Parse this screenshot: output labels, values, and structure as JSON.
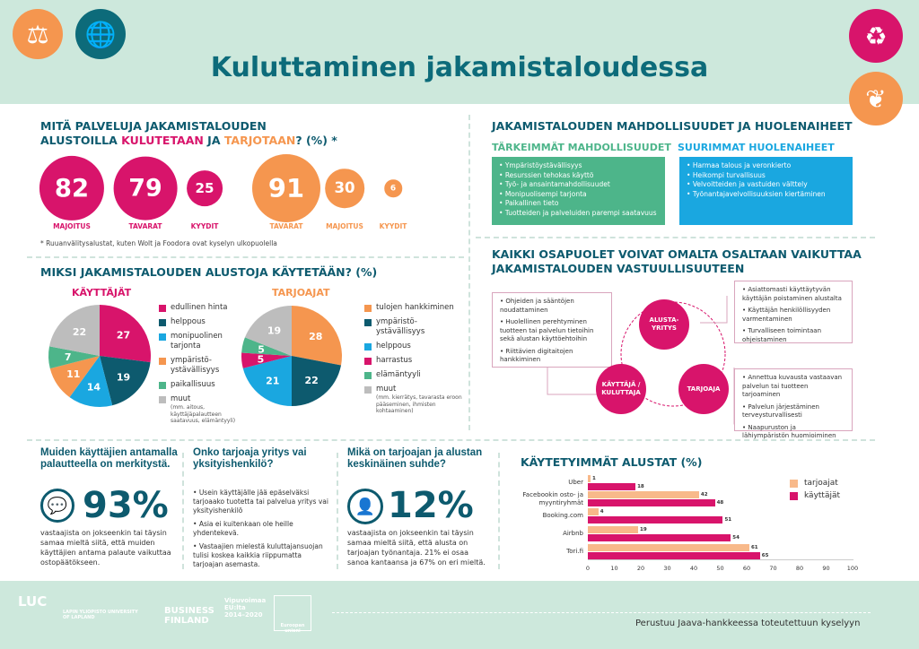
{
  "title": "Kuluttaminen jakamistaloudessa",
  "colors": {
    "magenta": "#d8146b",
    "orange": "#f5964f",
    "darkteal": "#0d5a6e",
    "cyan": "#1aa7e0",
    "green": "#4db58a",
    "gray": "#bdbdbd",
    "mint": "#cde8dc"
  },
  "icons": [
    "scales-icon",
    "globe-hand-icon",
    "recycle-icon",
    "leaves-icon"
  ],
  "services": {
    "title_part1": "MITÄ PALVELUJA JAKAMISTALOUDEN",
    "title_part2": "ALUSTOILLA ",
    "title_kul": "KULUTETAAN",
    "title_ja": " JA ",
    "title_tar": "TARJOTAAN",
    "title_end": "? (%) *",
    "footnote": "* Ruuanvälitysalustat, kuten Wolt ja Foodora ovat kyselyn ulkopuolella"
  },
  "opportunities": {
    "title": "JAKAMISTALOUDEN MAHDOLLISUUDET JA HUOLENAIHEET",
    "left_title": "TÄRKEIMMÄT MAHDOLLISUUDET",
    "right_title": "SUURIMMAT HUOLENAIHEET",
    "left": [
      "Ympäristöystävällisyys",
      "Resurssien tehokas käyttö",
      "Työ- ja ansaintamahdollisuudet",
      "Monipuolisempi tarjonta",
      "Paikallinen tieto",
      "Tuotteiden ja palveluiden parempi saatavuus"
    ],
    "right": [
      "Harmaa talous ja veronkierto",
      "Heikompi turvallisuus",
      "Velvoitteiden ja vastuiden välttely",
      "Työnantajavelvollisuuksien kiertäminen"
    ]
  },
  "why": {
    "title": "MIKSI JAKAMISTALOUDEN ALUSTOJA KÄYTETÄÄN? (%)"
  },
  "responsibility": {
    "title1": "KAIKKI OSAPUOLET VOIVAT OMALTA OSALTAAN VAIKUTTAA",
    "title2": "JAKAMISTALOUDEN VASTUULLISUUTEEN",
    "platform": "ALUSTA-\nYRITYS",
    "user": "KÄYTTÄJÄ /\nKULUTTAJA",
    "provider": "TARJOAJA",
    "user_items": [
      "Ohjeiden ja sääntöjen noudattaminen",
      "Huolellinen perehtyminen tuotteen tai palvelun tietoihin sekä alustan käyttöehtoihin",
      "Riittävien digitaitojen hankkiminen"
    ],
    "platform_items": [
      "Asiattomasti käyttäytyvän käyttäjän poistaminen alustalta",
      "Käyttäjän henkilöllisyyden varmentaminen",
      "Turvalliseen toimintaan ohjeistaminen"
    ],
    "provider_items": [
      "Annettua kuvausta vastaavan palvelun tai tuotteen tarjoaminen",
      "Palvelun järjestäminen terveysturvallisesti",
      "Naapuruston ja lähiympäristön huomioiminen"
    ]
  },
  "feedback": {
    "title": "Muiden käyttäjien antamalla palautteella on merkitystä.",
    "value": "93%",
    "text": "vastaajista on jokseenkin tai täysin samaa mieltä siitä, että muiden käyttäjien antama palaute vaikuttaa ostopäätökseen."
  },
  "provider_type": {
    "title": "Onko tarjoaja yritys vai yksityishenkilö?",
    "items": [
      "Usein käyttäjälle jää epäselväksi tarjoaako tuotetta tai palvelua yritys vai yksityishenkilö",
      "Asia ei kuitenkaan ole heille yhdentekevä.",
      "Vastaajien mielestä kuluttajansuojan tulisi koskea kaikkia riippumatta tarjoajan asemasta."
    ]
  },
  "relation": {
    "title": "Mikä on tarjoajan ja alustan keskinäinen suhde?",
    "value": "12%",
    "text": "vastaajista on jokseenkin tai täysin samaa mieltä siitä, että alusta on tarjoajan työnantaja. 21% ei osaa sanoa kantaansa ja 67% on eri mieltä."
  },
  "footer": {
    "logos": [
      "LUC",
      "LAPIN YLIOPISTO UNIVERSITY OF LAPLAND",
      "BUSINESS FINLAND",
      "Vipuvoimaa EU:lta 2014–2020",
      "Euroopan unioni"
    ],
    "text": "Perustuu Jaava-hankkeessa toteutettuun kyselyyn"
  },
  "chart_data": [
    {
      "type": "bubble",
      "title": "KULUTETAAN",
      "categories": [
        "MAJOITUS",
        "TAVARAT",
        "KYYDIT"
      ],
      "values": [
        82,
        79,
        25
      ],
      "color": "#d8146b"
    },
    {
      "type": "bubble",
      "title": "TARJOTAAN",
      "categories": [
        "TAVARAT",
        "MAJOITUS",
        "KYYDIT"
      ],
      "values": [
        91,
        30,
        6
      ],
      "color": "#f5964f"
    },
    {
      "type": "pie",
      "title": "KÄYTTÄJÄT",
      "categories": [
        "edullinen hinta",
        "helppous",
        "monipuolinen tarjonta",
        "ympäristö-ystävällisyys",
        "paikallisuus",
        "muut"
      ],
      "notes": {
        "muut": "(mm. aitous, käyttäjäpalautteen saatavuus, elämäntyyli)"
      },
      "values": [
        27,
        19,
        14,
        11,
        7,
        22
      ],
      "colors": [
        "#d8146b",
        "#0d5a6e",
        "#1aa7e0",
        "#f5964f",
        "#4db58a",
        "#bdbdbd"
      ]
    },
    {
      "type": "pie",
      "title": "TARJOAJAT",
      "categories": [
        "tulojen hankkiminen",
        "ympäristö-ystävällisyys",
        "helppous",
        "harrastus",
        "elämäntyyli",
        "muut"
      ],
      "notes": {
        "muut": "(mm. kierrätys, tavarasta eroon pääseminen, ihmisten kohtaaminen)"
      },
      "values": [
        28,
        22,
        21,
        5,
        5,
        19
      ],
      "colors": [
        "#f5964f",
        "#0d5a6e",
        "#1aa7e0",
        "#d8146b",
        "#4db58a",
        "#bdbdbd"
      ]
    },
    {
      "type": "bar",
      "orientation": "horizontal",
      "title": "KÄYTETYIMMÄT ALUSTAT (%)",
      "categories": [
        "Uber",
        "Facebookin osto- ja myyntiryhmät",
        "Booking.com",
        "Airbnb",
        "Tori.fi"
      ],
      "series": [
        {
          "name": "tarjoajat",
          "values": [
            1,
            42,
            4,
            19,
            61
          ],
          "color": "#f8b98a"
        },
        {
          "name": "käyttäjät",
          "values": [
            18,
            48,
            51,
            54,
            65
          ],
          "color": "#d8146b"
        }
      ],
      "xlim": [
        0,
        100
      ],
      "xticks": [
        "0",
        "10",
        "20",
        "30",
        "40",
        "50",
        "60",
        "70",
        "80",
        "90",
        "100"
      ],
      "legend": "top-right"
    }
  ]
}
